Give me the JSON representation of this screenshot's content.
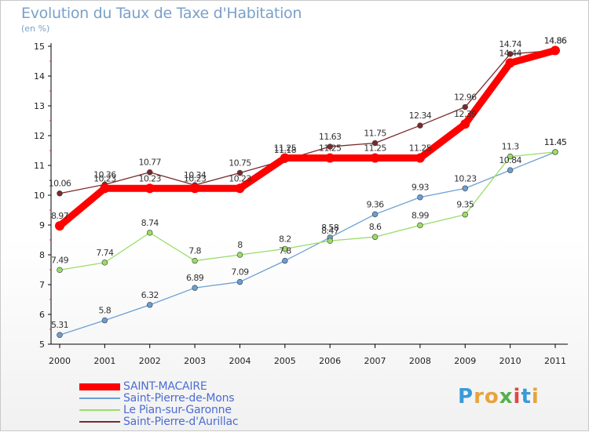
{
  "title": "Evolution du Taux de Taxe d'Habitation",
  "unit_label": "(en %)",
  "logo": {
    "letters": [
      "P",
      "r",
      "o",
      "x",
      "i",
      "t",
      "i"
    ],
    "colors": [
      "#3a9ad9",
      "#e8a33c",
      "#e8a33c",
      "#56b04a",
      "#e04848",
      "#3a9ad9",
      "#e8a33c"
    ]
  },
  "chart_data": {
    "type": "line",
    "x": [
      "2000",
      "2001",
      "2002",
      "2003",
      "2004",
      "2005",
      "2006",
      "2007",
      "2008",
      "2009",
      "2010",
      "2011"
    ],
    "ylim": [
      5,
      15
    ],
    "yticks": [
      5,
      6,
      7,
      8,
      9,
      10,
      11,
      12,
      13,
      14,
      15
    ],
    "grid": false,
    "legend_position": "bottom-left",
    "series": [
      {
        "name": "SAINT-MACAIRE",
        "color": "#ff0000",
        "values": [
          8.97,
          10.23,
          10.23,
          10.23,
          10.23,
          11.25,
          11.25,
          11.25,
          11.25,
          12.39,
          14.44,
          14.86
        ],
        "labels": [
          "8.97",
          "10.23",
          "10.23",
          "10.23",
          "10.23",
          "11.25",
          "11.25",
          "11.25",
          "11.25",
          "12.39",
          "14.44",
          "14.86"
        ]
      },
      {
        "name": "Saint-Pierre-de-Mons",
        "color": "#6b9fd4",
        "values": [
          5.31,
          5.8,
          6.32,
          6.89,
          7.09,
          7.8,
          8.58,
          9.36,
          9.93,
          10.23,
          10.84,
          11.45
        ],
        "labels": [
          "5.31",
          "5.8",
          "6.32",
          "6.89",
          "7.09",
          "7.8",
          "8.58",
          "9.36",
          "9.93",
          "10.23",
          "10.84",
          "11.45"
        ]
      },
      {
        "name": "Le Pian-sur-Garonne",
        "color": "#99dd66",
        "values": [
          7.49,
          7.74,
          8.74,
          7.8,
          8,
          8.2,
          8.47,
          8.6,
          8.99,
          9.35,
          11.3,
          11.45
        ],
        "labels": [
          "7.49",
          "7.74",
          "8.74",
          "7.8",
          "8",
          "8.2",
          "8.47",
          "8.6",
          "8.99",
          "9.35",
          "11.3",
          "11.45"
        ]
      },
      {
        "name": "Saint-Pierre-d'Aurillac",
        "color": "#7a2a2a",
        "values": [
          10.06,
          10.36,
          10.77,
          10.34,
          10.75,
          11.18,
          11.63,
          11.75,
          12.34,
          12.96,
          14.74,
          14.86
        ],
        "labels": [
          "10.06",
          "10.36",
          "10.77",
          "10.34",
          "10.75",
          "11.18",
          "11.63",
          "11.75",
          "12.34",
          "12.96",
          "14.74",
          "14.86"
        ]
      }
    ]
  }
}
